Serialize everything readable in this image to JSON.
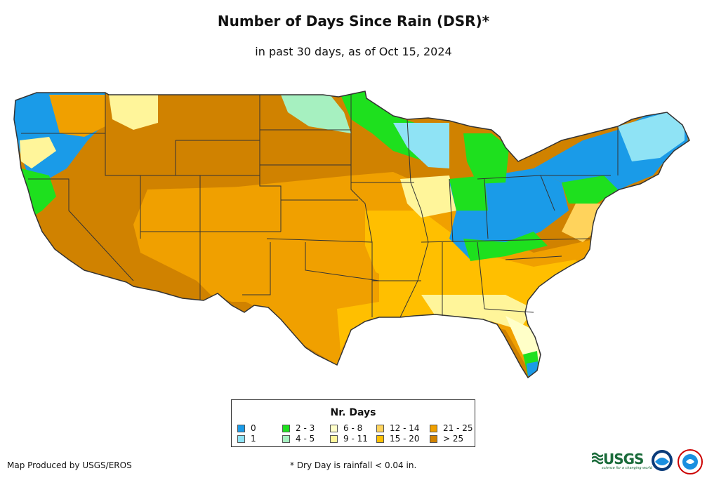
{
  "header": {
    "title": "Number of Days Since Rain (DSR)*",
    "subtitle": "in past 30 days, as of Oct 15, 2024"
  },
  "legend": {
    "title": "Nr. Days",
    "items": [
      {
        "label": "0",
        "color": "#1a9be8"
      },
      {
        "label": "1",
        "color": "#8fe3f5"
      },
      {
        "label": "2 - 3",
        "color": "#1ee01e"
      },
      {
        "label": "4 - 5",
        "color": "#a6f0c0"
      },
      {
        "label": "6 - 8",
        "color": "#ffffc8"
      },
      {
        "label": "9 - 11",
        "color": "#fff59a"
      },
      {
        "label": "12 - 14",
        "color": "#ffd35c"
      },
      {
        "label": "15 - 20",
        "color": "#ffbf00"
      },
      {
        "label": "21 - 25",
        "color": "#f0a000"
      },
      {
        "label": "> 25",
        "color": "#d08200"
      }
    ]
  },
  "footer": {
    "credit": "Map Produced by USGS/EROS",
    "footnote": "* Dry Day is rainfall < 0.04 in."
  },
  "logos": {
    "usgs": "USGS",
    "usgs_tagline": "science for a changing world",
    "noaa": "noaa-logo-icon",
    "nws": "nws-logo-icon"
  }
}
